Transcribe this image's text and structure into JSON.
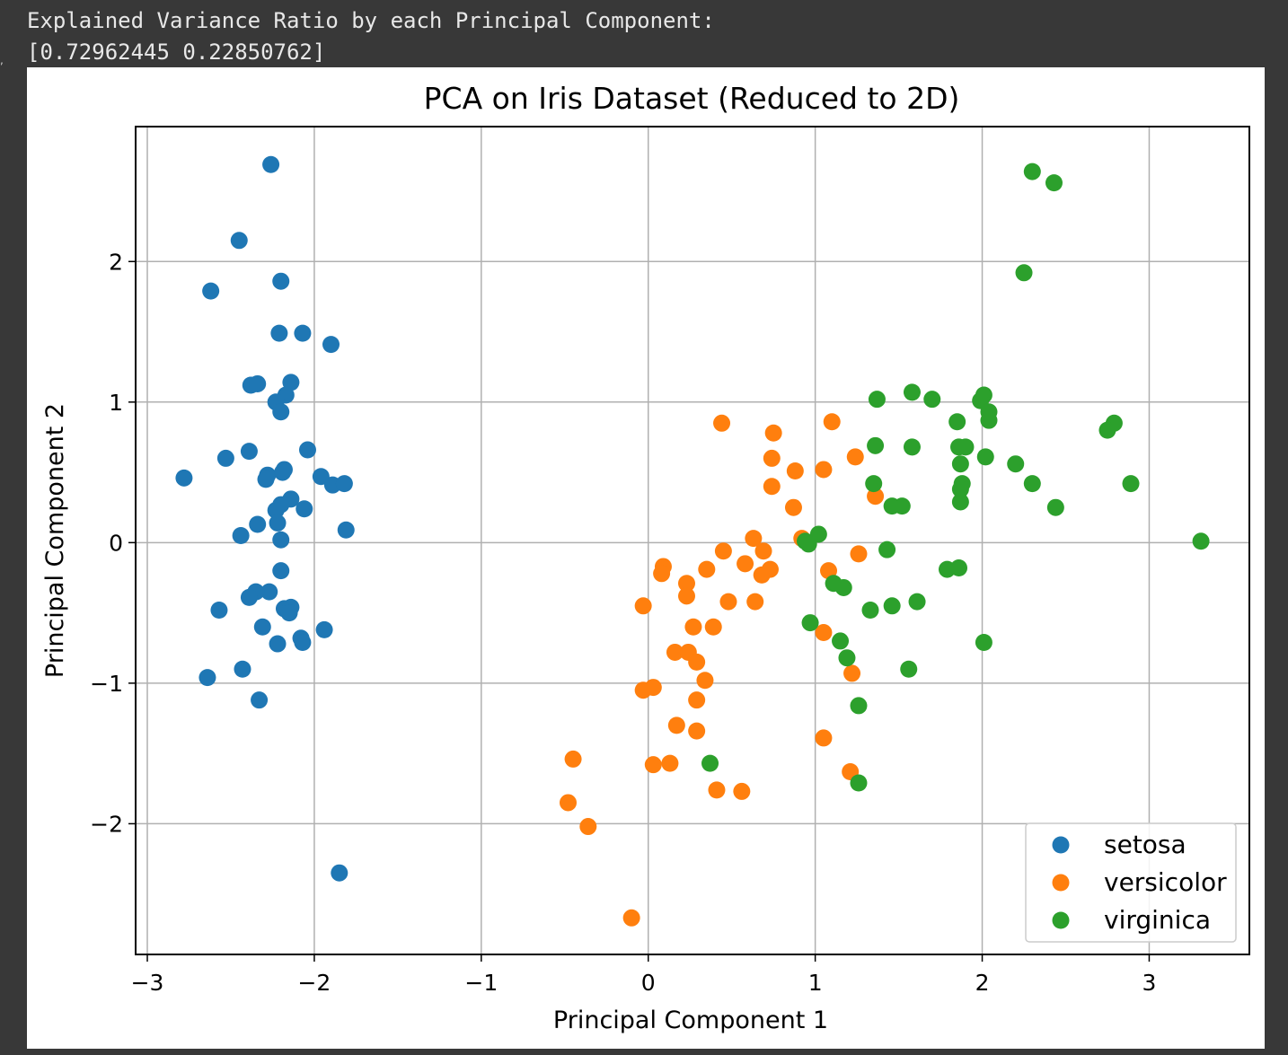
{
  "output": {
    "line1": "Explained Variance Ratio by each Principal Component:",
    "line2": "[0.72962445 0.22850762]"
  },
  "chart_data": {
    "type": "scatter",
    "title": "PCA on Iris Dataset (Reduced to 2D)",
    "xlabel": "Principal Component 1",
    "ylabel": "Principal Component 2",
    "xlim": [
      -3.07,
      3.6
    ],
    "ylim": [
      -2.93,
      2.96
    ],
    "xticks": [
      -3,
      -2,
      -1,
      0,
      1,
      2,
      3
    ],
    "xtick_labels": [
      "−3",
      "−2",
      "−1",
      "0",
      "1",
      "2",
      "3"
    ],
    "yticks": [
      -2,
      -1,
      0,
      1,
      2
    ],
    "ytick_labels": [
      "−2",
      "−1",
      "0",
      "1",
      "2"
    ],
    "grid": true,
    "legend_position": "lower-right",
    "series": [
      {
        "name": "setosa",
        "color": "#1f77b4",
        "points": [
          [
            -2.26,
            2.69
          ],
          [
            -2.45,
            2.15
          ],
          [
            -2.62,
            1.79
          ],
          [
            -2.2,
            1.86
          ],
          [
            -2.21,
            1.49
          ],
          [
            -2.07,
            1.49
          ],
          [
            -1.9,
            1.41
          ],
          [
            -2.14,
            1.14
          ],
          [
            -2.38,
            1.12
          ],
          [
            -2.34,
            1.13
          ],
          [
            -2.17,
            1.05
          ],
          [
            -2.23,
            1.0
          ],
          [
            -2.2,
            0.93
          ],
          [
            -2.39,
            0.65
          ],
          [
            -2.53,
            0.6
          ],
          [
            -2.04,
            0.66
          ],
          [
            -2.78,
            0.46
          ],
          [
            -2.28,
            0.48
          ],
          [
            -2.29,
            0.45
          ],
          [
            -2.18,
            0.52
          ],
          [
            -2.19,
            0.5
          ],
          [
            -1.96,
            0.47
          ],
          [
            -1.89,
            0.41
          ],
          [
            -1.82,
            0.42
          ],
          [
            -2.14,
            0.31
          ],
          [
            -2.2,
            0.27
          ],
          [
            -2.23,
            0.23
          ],
          [
            -2.06,
            0.24
          ],
          [
            -2.34,
            0.13
          ],
          [
            -2.22,
            0.14
          ],
          [
            -1.81,
            0.09
          ],
          [
            -2.44,
            0.05
          ],
          [
            -2.2,
            0.02
          ],
          [
            -2.2,
            -0.2
          ],
          [
            -2.27,
            -0.35
          ],
          [
            -2.35,
            -0.35
          ],
          [
            -2.39,
            -0.39
          ],
          [
            -2.18,
            -0.47
          ],
          [
            -2.14,
            -0.46
          ],
          [
            -2.57,
            -0.48
          ],
          [
            -2.15,
            -0.5
          ],
          [
            -2.31,
            -0.6
          ],
          [
            -2.08,
            -0.68
          ],
          [
            -1.94,
            -0.62
          ],
          [
            -2.07,
            -0.71
          ],
          [
            -2.22,
            -0.72
          ],
          [
            -2.64,
            -0.96
          ],
          [
            -2.43,
            -0.9
          ],
          [
            -2.33,
            -1.12
          ],
          [
            -1.85,
            -2.35
          ]
        ]
      },
      {
        "name": "versicolor",
        "color": "#ff7f0e",
        "points": [
          [
            0.44,
            0.85
          ],
          [
            1.1,
            0.86
          ],
          [
            0.75,
            0.78
          ],
          [
            0.74,
            0.6
          ],
          [
            0.88,
            0.51
          ],
          [
            1.05,
            0.52
          ],
          [
            1.24,
            0.61
          ],
          [
            0.74,
            0.4
          ],
          [
            0.87,
            0.25
          ],
          [
            1.36,
            0.33
          ],
          [
            0.63,
            0.03
          ],
          [
            0.45,
            -0.06
          ],
          [
            0.69,
            -0.06
          ],
          [
            0.92,
            0.03
          ],
          [
            1.26,
            -0.08
          ],
          [
            0.58,
            -0.15
          ],
          [
            0.73,
            -0.19
          ],
          [
            0.68,
            -0.23
          ],
          [
            0.09,
            -0.17
          ],
          [
            0.08,
            -0.22
          ],
          [
            0.35,
            -0.19
          ],
          [
            0.23,
            -0.29
          ],
          [
            0.23,
            -0.38
          ],
          [
            0.48,
            -0.42
          ],
          [
            0.64,
            -0.42
          ],
          [
            1.08,
            -0.2
          ],
          [
            -0.03,
            -0.45
          ],
          [
            0.27,
            -0.6
          ],
          [
            0.39,
            -0.6
          ],
          [
            1.05,
            -0.64
          ],
          [
            0.16,
            -0.78
          ],
          [
            0.24,
            -0.78
          ],
          [
            0.29,
            -0.85
          ],
          [
            0.34,
            -0.98
          ],
          [
            1.22,
            -0.93
          ],
          [
            -0.03,
            -1.05
          ],
          [
            0.03,
            -1.03
          ],
          [
            0.29,
            -1.12
          ],
          [
            0.17,
            -1.3
          ],
          [
            0.29,
            -1.34
          ],
          [
            1.05,
            -1.39
          ],
          [
            -0.45,
            -1.54
          ],
          [
            0.03,
            -1.58
          ],
          [
            0.13,
            -1.57
          ],
          [
            1.21,
            -1.63
          ],
          [
            0.41,
            -1.76
          ],
          [
            0.56,
            -1.77
          ],
          [
            -0.48,
            -1.85
          ],
          [
            -0.36,
            -2.02
          ],
          [
            -0.1,
            -2.67
          ]
        ]
      },
      {
        "name": "virginica",
        "color": "#2ca02c",
        "points": [
          [
            2.3,
            2.64
          ],
          [
            2.43,
            2.56
          ],
          [
            2.25,
            1.92
          ],
          [
            1.37,
            1.02
          ],
          [
            1.58,
            1.07
          ],
          [
            1.7,
            1.02
          ],
          [
            1.99,
            1.01
          ],
          [
            2.01,
            1.05
          ],
          [
            2.04,
            0.93
          ],
          [
            2.04,
            0.87
          ],
          [
            1.85,
            0.86
          ],
          [
            2.79,
            0.85
          ],
          [
            2.75,
            0.8
          ],
          [
            1.36,
            0.69
          ],
          [
            1.58,
            0.68
          ],
          [
            1.86,
            0.68
          ],
          [
            1.9,
            0.68
          ],
          [
            2.02,
            0.61
          ],
          [
            1.87,
            0.56
          ],
          [
            2.2,
            0.56
          ],
          [
            1.35,
            0.42
          ],
          [
            1.88,
            0.42
          ],
          [
            2.3,
            0.42
          ],
          [
            2.89,
            0.42
          ],
          [
            1.87,
            0.38
          ],
          [
            1.87,
            0.29
          ],
          [
            1.46,
            0.26
          ],
          [
            1.52,
            0.26
          ],
          [
            2.44,
            0.25
          ],
          [
            1.02,
            0.06
          ],
          [
            0.94,
            0.01
          ],
          [
            0.96,
            -0.01
          ],
          [
            3.31,
            0.01
          ],
          [
            1.43,
            -0.05
          ],
          [
            1.79,
            -0.19
          ],
          [
            1.86,
            -0.18
          ],
          [
            1.11,
            -0.29
          ],
          [
            1.17,
            -0.32
          ],
          [
            1.61,
            -0.42
          ],
          [
            1.46,
            -0.45
          ],
          [
            1.33,
            -0.48
          ],
          [
            0.97,
            -0.57
          ],
          [
            1.15,
            -0.7
          ],
          [
            2.01,
            -0.71
          ],
          [
            1.19,
            -0.82
          ],
          [
            1.56,
            -0.9
          ],
          [
            1.26,
            -1.16
          ],
          [
            0.37,
            -1.57
          ],
          [
            1.26,
            -1.71
          ]
        ]
      }
    ]
  }
}
